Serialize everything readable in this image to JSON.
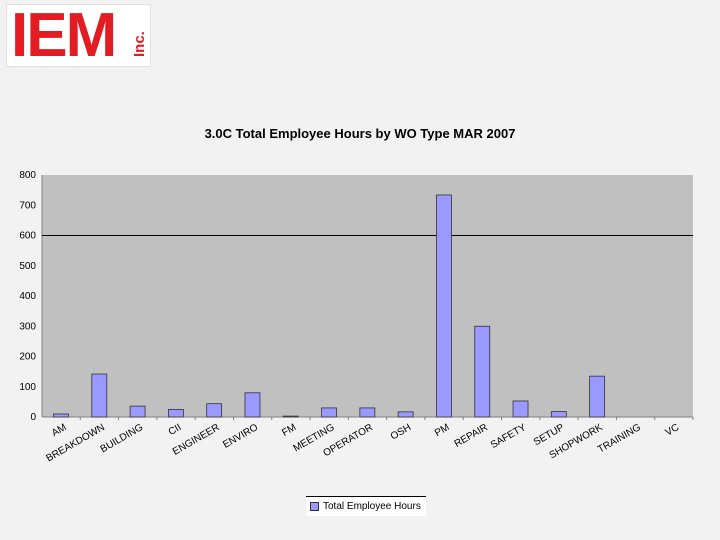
{
  "logo": {
    "main": "IEM",
    "suffix": "Inc."
  },
  "colors": {
    "bar": "#9999ff",
    "plot_bg": "#c0c0c0",
    "page_bg": "#f2f2f2"
  },
  "chart_data": {
    "type": "bar",
    "title": "3.0C Total Employee Hours by WO Type MAR 2007",
    "xlabel": "",
    "ylabel": "",
    "ylim": [
      0,
      800
    ],
    "yticks": [
      0,
      100,
      200,
      300,
      400,
      500,
      600,
      700,
      800
    ],
    "grid": false,
    "reference_line": 600,
    "legend": "bottom",
    "categories": [
      "AM",
      "BREAKDOWN",
      "BUILDING",
      "CII",
      "ENGINEER",
      "ENVIRO",
      "FM",
      "MEETING",
      "OPERATOR",
      "OSH",
      "PM",
      "REPAIR",
      "SAFETY",
      "SETUP",
      "SHOPWORK",
      "TRAINING",
      "VC"
    ],
    "series": [
      {
        "name": "Total Employee Hours",
        "values": [
          10,
          142,
          36,
          25,
          44,
          80,
          3,
          30,
          30,
          17,
          734,
          300,
          53,
          18,
          135,
          0,
          0
        ]
      }
    ]
  }
}
